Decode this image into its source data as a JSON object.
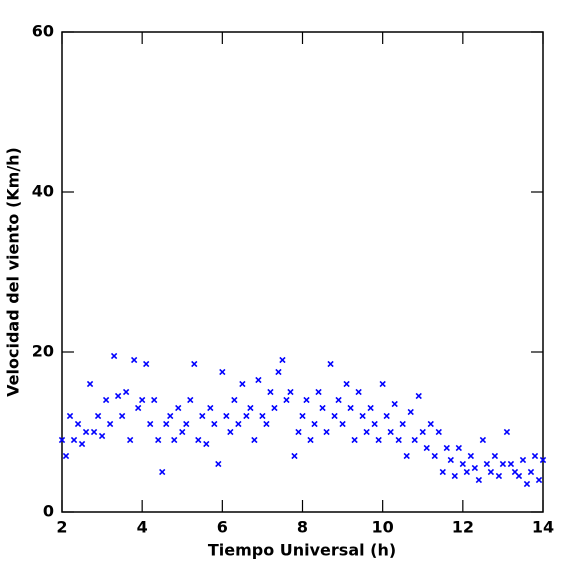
{
  "chart_data": {
    "type": "scatter",
    "x_label": "Tiempo Universal (h)",
    "y_label": "Velocidad del viento (Km/h)",
    "color": "#0000ff",
    "xlim": [
      2,
      14
    ],
    "ylim": [
      0,
      60
    ],
    "xticks": [
      2,
      4,
      6,
      8,
      10,
      12,
      14
    ],
    "yticks": [
      0,
      20,
      40,
      60
    ],
    "grid": false,
    "x": [
      2.0,
      2.1,
      2.2,
      2.3,
      2.4,
      2.5,
      2.6,
      2.7,
      2.8,
      2.9,
      3.0,
      3.1,
      3.2,
      3.3,
      3.4,
      3.5,
      3.6,
      3.7,
      3.8,
      3.9,
      4.0,
      4.1,
      4.2,
      4.3,
      4.4,
      4.5,
      4.6,
      4.7,
      4.8,
      4.9,
      5.0,
      5.1,
      5.2,
      5.3,
      5.4,
      5.5,
      5.6,
      5.7,
      5.8,
      5.9,
      6.0,
      6.1,
      6.2,
      6.3,
      6.4,
      6.5,
      6.6,
      6.7,
      6.8,
      6.9,
      7.0,
      7.1,
      7.2,
      7.3,
      7.4,
      7.5,
      7.6,
      7.7,
      7.8,
      7.9,
      8.0,
      8.1,
      8.2,
      8.3,
      8.4,
      8.5,
      8.6,
      8.7,
      8.8,
      8.9,
      9.0,
      9.1,
      9.2,
      9.3,
      9.4,
      9.5,
      9.6,
      9.7,
      9.8,
      9.9,
      10.0,
      10.1,
      10.2,
      10.3,
      10.4,
      10.5,
      10.6,
      10.7,
      10.8,
      10.9,
      11.0,
      11.1,
      11.2,
      11.3,
      11.4,
      11.5,
      11.6,
      11.7,
      11.8,
      11.9,
      12.0,
      12.1,
      12.2,
      12.3,
      12.4,
      12.5,
      12.6,
      12.7,
      12.8,
      12.9,
      13.0,
      13.1,
      13.2,
      13.3,
      13.4,
      13.5,
      13.6,
      13.7,
      13.8,
      13.9,
      14.0
    ],
    "values": [
      9,
      7,
      12,
      9,
      11,
      8.5,
      10,
      16,
      10,
      12,
      9.5,
      14,
      11,
      19.5,
      14.5,
      12,
      15,
      9,
      19,
      13,
      14,
      18.5,
      11,
      14,
      9,
      5,
      11,
      12,
      9,
      13,
      10,
      11,
      14,
      18.5,
      9,
      12,
      8.5,
      13,
      11,
      6,
      17.5,
      12,
      10,
      14,
      11,
      16,
      12,
      13,
      9,
      16.5,
      12,
      11,
      15,
      13,
      17.5,
      19,
      14,
      15,
      7,
      10,
      12,
      14,
      9,
      11,
      15,
      13,
      10,
      18.5,
      12,
      14,
      11,
      16,
      13,
      9,
      15,
      12,
      10,
      13,
      11,
      9,
      16,
      12,
      10,
      13.5,
      9,
      11,
      7,
      12.5,
      9,
      14.5,
      10,
      8,
      11,
      7,
      10,
      5,
      8,
      6.5,
      4.5,
      8,
      6,
      5,
      7,
      5.5,
      4,
      9,
      6,
      5,
      7,
      4.5,
      6,
      10,
      6,
      5,
      4.5,
      6.5,
      3.5,
      5,
      7,
      4,
      6.5
    ]
  }
}
